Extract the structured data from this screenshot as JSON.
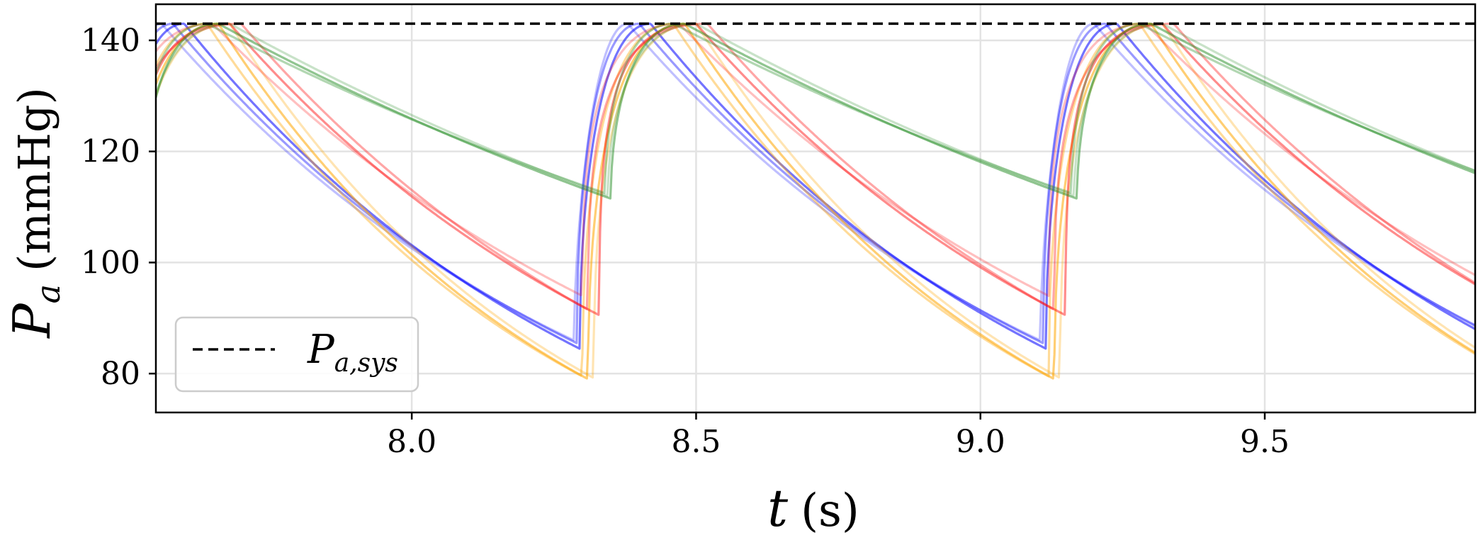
{
  "chart_data": {
    "type": "line",
    "xlabel": {
      "symbol": "t",
      "unit": "(s)"
    },
    "ylabel": {
      "symbol": "P",
      "subscript": "a",
      "unit": "(mmHg)"
    },
    "xlim": [
      7.55,
      9.87
    ],
    "ylim": [
      73,
      146.5
    ],
    "xticks": [
      8.0,
      8.5,
      9.0,
      9.5
    ],
    "xtick_labels": [
      "8.0",
      "8.5",
      "9.0",
      "9.5"
    ],
    "yticks": [
      80,
      100,
      120,
      140
    ],
    "ytick_labels": [
      "80",
      "100",
      "120",
      "140"
    ],
    "grid": true,
    "reference_line": {
      "y": 143,
      "style": "dashed",
      "color": "#000000"
    },
    "legend": {
      "position": "lower-left",
      "entries": [
        {
          "label_symbol": "P",
          "label_subscript": "a,sys",
          "style": "dashed"
        }
      ]
    },
    "colors": {
      "blue": "#0000ff",
      "orange": "#ffa500",
      "red": "#ff0000",
      "green": "#228b22"
    },
    "period_s": 0.82,
    "series": [
      {
        "color": "blue",
        "opacity": 0.55,
        "t_min": 8.295,
        "p_min": 84.5,
        "t_peak": 8.42,
        "p_peak": 143,
        "decay_tau": 0.77,
        "rise_k": 2.0
      },
      {
        "color": "blue",
        "opacity": 0.4,
        "t_min": 8.29,
        "p_min": 85.5,
        "t_peak": 8.4,
        "p_peak": 143,
        "decay_tau": 0.78,
        "rise_k": 2.0
      },
      {
        "color": "blue",
        "opacity": 0.25,
        "t_min": 8.285,
        "p_min": 86.0,
        "t_peak": 8.38,
        "p_peak": 143,
        "decay_tau": 0.8,
        "rise_k": 1.6
      },
      {
        "color": "orange",
        "opacity": 0.55,
        "t_min": 8.31,
        "p_min": 79.0,
        "t_peak": 8.48,
        "p_peak": 143,
        "decay_tau": 0.62,
        "rise_k": 2.2
      },
      {
        "color": "orange",
        "opacity": 0.4,
        "t_min": 8.3,
        "p_min": 79.5,
        "t_peak": 8.46,
        "p_peak": 143,
        "decay_tau": 0.63,
        "rise_k": 2.2
      },
      {
        "color": "orange",
        "opacity": 0.3,
        "t_min": 8.32,
        "p_min": 79.2,
        "t_peak": 8.5,
        "p_peak": 143,
        "decay_tau": 0.61,
        "rise_k": 2.4
      },
      {
        "color": "red",
        "opacity": 0.45,
        "t_min": 8.33,
        "p_min": 90.5,
        "t_peak": 8.5,
        "p_peak": 143,
        "decay_tau": 0.8,
        "rise_k": 3.0
      },
      {
        "color": "red",
        "opacity": 0.35,
        "t_min": 8.31,
        "p_min": 91.5,
        "t_peak": 8.52,
        "p_peak": 143,
        "decay_tau": 0.84,
        "rise_k": 2.8
      },
      {
        "color": "red",
        "opacity": 0.25,
        "t_min": 8.3,
        "p_min": 94.0,
        "t_peak": 8.47,
        "p_peak": 143,
        "decay_tau": 0.9,
        "rise_k": 2.6
      },
      {
        "color": "green",
        "opacity": 0.5,
        "t_min": 8.35,
        "p_min": 111.5,
        "t_peak": 8.48,
        "p_peak": 143,
        "decay_tau": 1.68,
        "rise_k": 2.0
      },
      {
        "color": "green",
        "opacity": 0.35,
        "t_min": 8.34,
        "p_min": 112.5,
        "t_peak": 8.46,
        "p_peak": 143,
        "decay_tau": 1.7,
        "rise_k": 2.0
      },
      {
        "color": "green",
        "opacity": 0.25,
        "t_min": 8.345,
        "p_min": 112.0,
        "t_peak": 8.5,
        "p_peak": 143,
        "decay_tau": 1.66,
        "rise_k": 2.0
      }
    ]
  }
}
